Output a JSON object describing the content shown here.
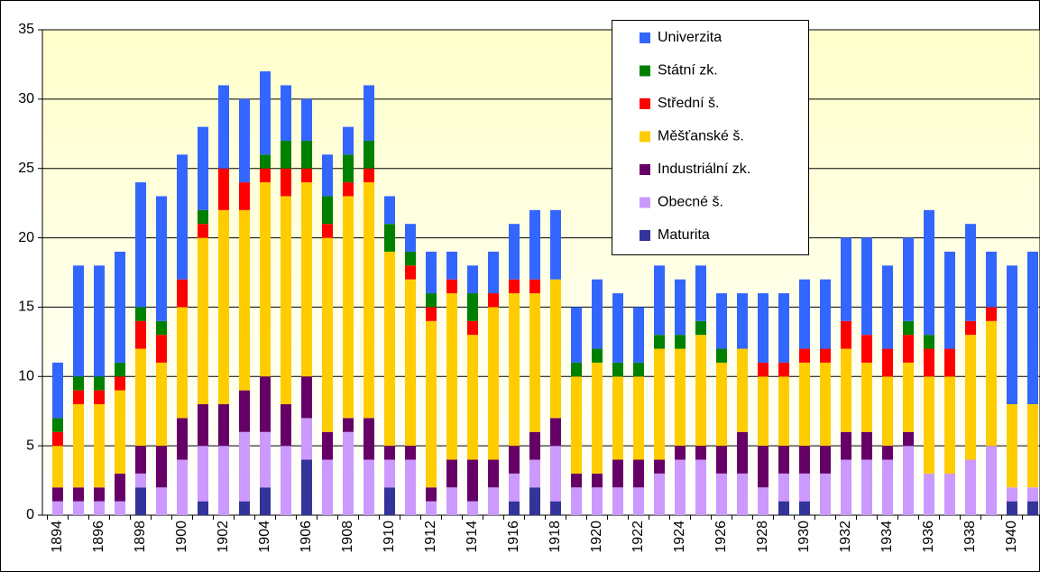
{
  "chart_data": {
    "type": "stacked_bar",
    "categories": [
      "1894",
      null,
      "1896",
      null,
      "1898",
      null,
      "1900",
      null,
      "1902",
      null,
      "1904",
      null,
      "1906",
      null,
      "1908",
      null,
      "1910",
      null,
      "1912",
      null,
      "1914",
      null,
      "1916",
      null,
      "1918",
      null,
      "1920",
      null,
      "1922",
      null,
      "1924",
      null,
      "1926",
      null,
      "1928",
      null,
      "1930",
      null,
      "1932",
      null,
      "1934",
      null,
      "1936",
      null,
      "1938",
      null,
      "1940",
      null
    ],
    "series": [
      {
        "name": "Maturita",
        "color": "#333399",
        "values": [
          0,
          0,
          0,
          0,
          2,
          0,
          0,
          1,
          0,
          1,
          2,
          0,
          4,
          0,
          0,
          0,
          2,
          0,
          0,
          0,
          0,
          0,
          1,
          2,
          1,
          0,
          0,
          0,
          0,
          0,
          0,
          0,
          0,
          0,
          0,
          1,
          1,
          0,
          0,
          0,
          0,
          0,
          0,
          0,
          0,
          0,
          1,
          1
        ]
      },
      {
        "name": "Obecné š.",
        "color": "#cc99ff",
        "values": [
          1,
          1,
          1,
          1,
          1,
          2,
          4,
          4,
          5,
          5,
          4,
          5,
          3,
          4,
          6,
          4,
          2,
          4,
          1,
          2,
          1,
          2,
          2,
          2,
          4,
          2,
          2,
          2,
          2,
          3,
          4,
          4,
          3,
          3,
          2,
          2,
          2,
          3,
          4,
          4,
          4,
          5,
          3,
          3,
          4,
          5,
          1,
          1
        ]
      },
      {
        "name": "Industriální zk.",
        "color": "#660066",
        "values": [
          1,
          1,
          1,
          2,
          2,
          3,
          3,
          3,
          3,
          3,
          4,
          3,
          3,
          2,
          1,
          3,
          1,
          1,
          1,
          2,
          3,
          2,
          2,
          2,
          2,
          1,
          1,
          2,
          2,
          1,
          1,
          1,
          2,
          3,
          3,
          2,
          2,
          2,
          2,
          2,
          1,
          1,
          0,
          0,
          0,
          0,
          0,
          0
        ]
      },
      {
        "name": "Měšťanské š.",
        "color": "#ffcc00",
        "values": [
          3,
          6,
          6,
          6,
          7,
          6,
          8,
          12,
          14,
          13,
          14,
          15,
          14,
          14,
          16,
          17,
          14,
          12,
          12,
          12,
          9,
          11,
          11,
          10,
          10,
          7,
          8,
          6,
          6,
          8,
          7,
          8,
          6,
          6,
          5,
          5,
          6,
          6,
          6,
          5,
          5,
          5,
          7,
          7,
          9,
          9,
          6,
          6
        ]
      },
      {
        "name": "Střední š.",
        "color": "#ff0000",
        "values": [
          1,
          1,
          1,
          1,
          2,
          2,
          2,
          1,
          3,
          2,
          1,
          2,
          1,
          1,
          1,
          1,
          0,
          1,
          1,
          1,
          1,
          1,
          1,
          1,
          0,
          0,
          0,
          0,
          0,
          0,
          0,
          0,
          0,
          0,
          1,
          1,
          1,
          1,
          2,
          2,
          2,
          2,
          2,
          2,
          1,
          1,
          0,
          0
        ]
      },
      {
        "name": "Státní zk.",
        "color": "#008000",
        "values": [
          1,
          1,
          1,
          1,
          1,
          1,
          0,
          1,
          0,
          0,
          1,
          2,
          2,
          2,
          2,
          2,
          2,
          1,
          1,
          0,
          2,
          0,
          0,
          0,
          0,
          1,
          1,
          1,
          1,
          1,
          1,
          1,
          1,
          0,
          0,
          0,
          0,
          0,
          0,
          0,
          0,
          1,
          1,
          0,
          0,
          0,
          0,
          0
        ]
      },
      {
        "name": "Univerzita",
        "color": "#3366ff",
        "values": [
          4,
          8,
          8,
          8,
          9,
          9,
          9,
          6,
          6,
          6,
          6,
          4,
          3,
          3,
          2,
          4,
          2,
          2,
          3,
          2,
          2,
          3,
          4,
          5,
          5,
          4,
          5,
          5,
          4,
          5,
          4,
          4,
          4,
          4,
          5,
          5,
          5,
          5,
          6,
          7,
          6,
          6,
          9,
          7,
          7,
          4,
          10,
          11
        ]
      }
    ],
    "ylim": [
      0,
      35
    ],
    "yticks": [
      0,
      5,
      10,
      15,
      20,
      25,
      30,
      35
    ],
    "grid": true
  }
}
